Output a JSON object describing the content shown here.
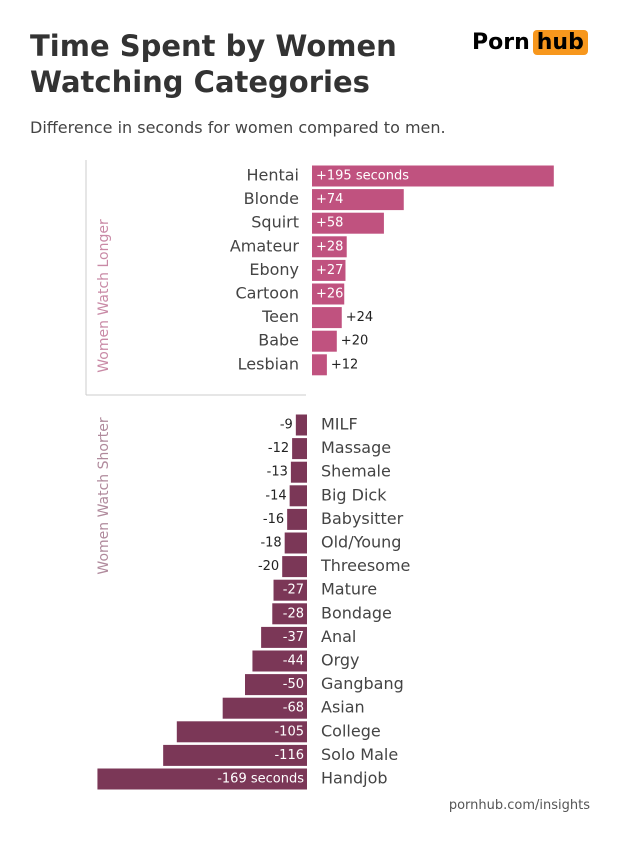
{
  "brand": {
    "left": "Porn",
    "right": "hub"
  },
  "source": "pornhub.com/insights",
  "chart_data": {
    "type": "bar",
    "title": "Time Spent by Women Watching Categories",
    "subtitle": "Difference in seconds for women compared to men.",
    "series": [
      {
        "name": "Women Watch Longer",
        "color": "#c0527f",
        "categories": [
          "Hentai",
          "Blonde",
          "Squirt",
          "Amateur",
          "Ebony",
          "Cartoon",
          "Teen",
          "Babe",
          "Lesbian"
        ],
        "values": [
          195,
          74,
          58,
          28,
          27,
          26,
          24,
          20,
          12
        ],
        "value_labels": [
          "+195 seconds",
          "+74",
          "+58",
          "+28",
          "+27",
          "+26",
          "+24",
          "+20",
          "+12"
        ]
      },
      {
        "name": "Women Watch Shorter",
        "color": "#7b3757",
        "categories": [
          "MILF",
          "Massage",
          "Shemale",
          "Big Dick",
          "Babysitter",
          "Old/Young",
          "Threesome",
          "Mature",
          "Bondage",
          "Anal",
          "Orgy",
          "Gangbang",
          "Asian",
          "College",
          "Solo Male",
          "Handjob"
        ],
        "values": [
          -9,
          -12,
          -13,
          -14,
          -16,
          -18,
          -20,
          -27,
          -28,
          -37,
          -44,
          -50,
          -68,
          -105,
          -116,
          -169
        ],
        "value_labels": [
          "-9",
          "-12",
          "-13",
          "-14",
          "-16",
          "-18",
          "-20",
          "-27",
          "-28",
          "-37",
          "-44",
          "-50",
          "-68",
          "-105",
          "-116",
          "-169 seconds"
        ]
      }
    ]
  }
}
